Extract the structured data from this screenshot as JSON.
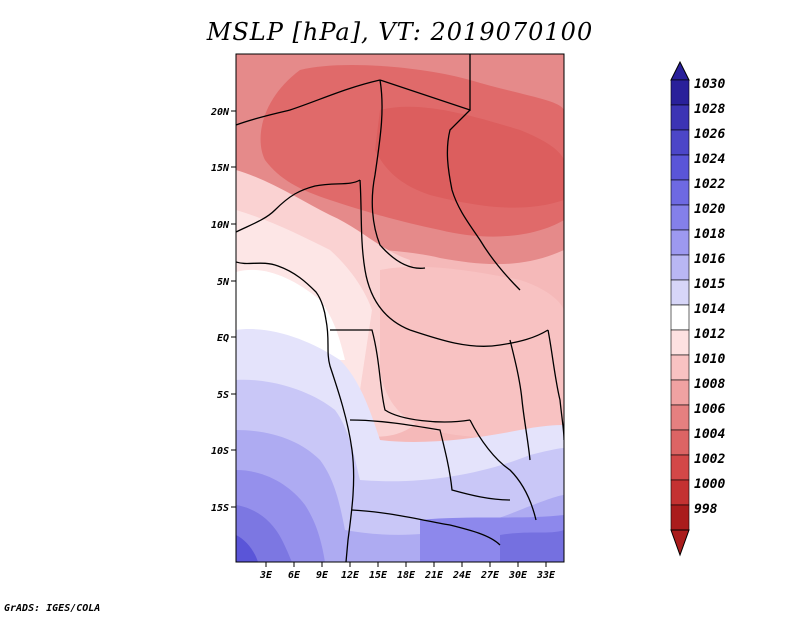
{
  "title": "MSLP [hPa], VT: 2019070100",
  "credit": "GrADS: IGES/COLA",
  "map": {
    "region": "Central Africa",
    "lon_ticks": [
      "3E",
      "6E",
      "9E",
      "12E",
      "15E",
      "18E",
      "21E",
      "24E",
      "27E",
      "30E",
      "33E"
    ],
    "lat_ticks": [
      "20N",
      "15N",
      "10N",
      "5N",
      "EQ",
      "5S",
      "10S",
      "15S"
    ]
  },
  "colorbar": {
    "labels": [
      "1030",
      "1028",
      "1026",
      "1024",
      "1022",
      "1020",
      "1018",
      "1016",
      "1015",
      "1014",
      "1012",
      "1010",
      "1008",
      "1006",
      "1004",
      "1002",
      "1000",
      "998"
    ],
    "colors": [
      "#29209a",
      "#3c34b4",
      "#4c46c8",
      "#5a55d8",
      "#6e69e2",
      "#8480ea",
      "#9d99f0",
      "#b9b7f4",
      "#d7d6f8",
      "#ffffff",
      "#fde1e1",
      "#f8c2c2",
      "#f0a2a2",
      "#e58080",
      "#dc6464",
      "#d34848",
      "#c43232",
      "#aa1c1c"
    ]
  },
  "colors": {
    "land_hi": "#e06a6a",
    "land_mid": "#f2a9a9",
    "low_south": "#8d88ec"
  }
}
